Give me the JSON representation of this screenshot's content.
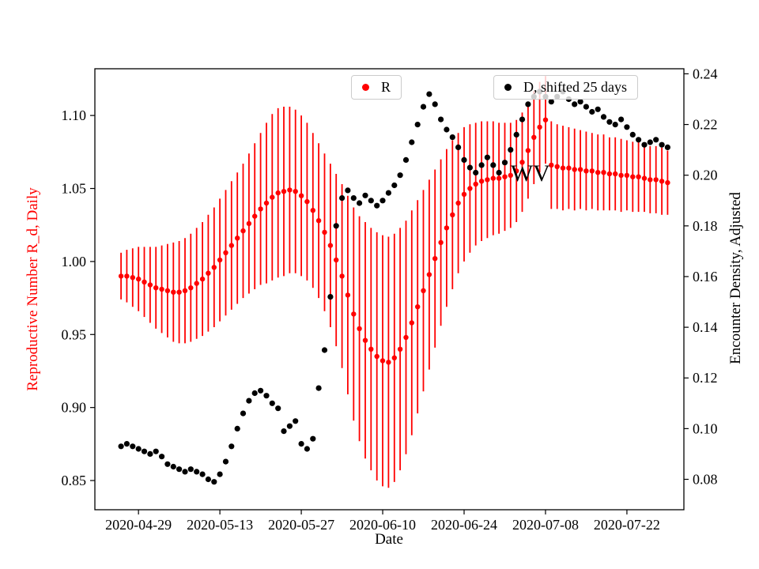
{
  "figure": {
    "background": "#ffffff"
  },
  "chart_data": {
    "type": "scatter",
    "title": "",
    "xlabel": "Date",
    "ylabel_left": "Reproductive Number R_d, Daily",
    "ylabel_right": "Encounter Density, Adjusted",
    "grid": false,
    "x_start_date": "2020-04-26",
    "x_tick_labels": [
      "2020-04-29",
      "2020-05-13",
      "2020-05-27",
      "2020-06-10",
      "2020-06-24",
      "2020-07-08",
      "2020-07-22"
    ],
    "x_tick_days": [
      3,
      17,
      31,
      45,
      59,
      73,
      87
    ],
    "xlim_days": [
      -4.5,
      96.8
    ],
    "left_axis": {
      "tick_labels": [
        "0.85",
        "0.90",
        "0.95",
        "1.00",
        "1.05",
        "1.10"
      ],
      "lim": [
        0.83,
        1.132
      ],
      "color": "#ff0000"
    },
    "right_axis": {
      "tick_labels": [
        "0.08",
        "0.10",
        "0.12",
        "0.14",
        "0.16",
        "0.18",
        "0.20",
        "0.22",
        "0.24"
      ],
      "lim": [
        0.068,
        0.242
      ],
      "color": "#000000"
    },
    "annotation": {
      "text": "WV",
      "date": "2020-07-02",
      "value": 1.052,
      "axis": "left"
    },
    "legends": [
      {
        "label": "R",
        "color": "#ff0000",
        "position": "upper center"
      },
      {
        "label": "D, shifted 25 days",
        "color": "#000000",
        "position": "upper right"
      }
    ],
    "series": [
      {
        "name": "R",
        "axis": "left",
        "color": "#ff0000",
        "marker": "circle",
        "values": [
          0.99,
          0.99,
          0.989,
          0.988,
          0.986,
          0.984,
          0.982,
          0.981,
          0.98,
          0.979,
          0.979,
          0.98,
          0.982,
          0.985,
          0.988,
          0.992,
          0.996,
          1.001,
          1.006,
          1.011,
          1.016,
          1.021,
          1.026,
          1.031,
          1.036,
          1.04,
          1.044,
          1.047,
          1.048,
          1.049,
          1.048,
          1.045,
          1.041,
          1.035,
          1.028,
          1.02,
          1.011,
          1.001,
          0.99,
          0.977,
          0.964,
          0.954,
          0.946,
          0.94,
          0.935,
          0.932,
          0.931,
          0.934,
          0.94,
          0.948,
          0.958,
          0.969,
          0.98,
          0.991,
          1.002,
          1.013,
          1.023,
          1.032,
          1.04,
          1.046,
          1.05,
          1.053,
          1.055,
          1.056,
          1.057,
          1.057,
          1.058,
          1.059,
          1.062,
          1.068,
          1.076,
          1.085,
          1.092,
          1.097,
          1.066,
          1.065,
          1.064,
          1.064,
          1.063,
          1.063,
          1.062,
          1.062,
          1.061,
          1.061,
          1.06,
          1.06,
          1.059,
          1.059,
          1.058,
          1.058,
          1.057,
          1.056,
          1.056,
          1.055,
          1.054
        ],
        "errors": [
          0.016,
          0.018,
          0.02,
          0.022,
          0.024,
          0.026,
          0.028,
          0.03,
          0.032,
          0.034,
          0.035,
          0.036,
          0.037,
          0.038,
          0.039,
          0.04,
          0.041,
          0.042,
          0.043,
          0.044,
          0.045,
          0.046,
          0.048,
          0.05,
          0.052,
          0.055,
          0.057,
          0.058,
          0.058,
          0.057,
          0.056,
          0.055,
          0.054,
          0.053,
          0.053,
          0.054,
          0.056,
          0.059,
          0.063,
          0.068,
          0.073,
          0.077,
          0.081,
          0.083,
          0.085,
          0.086,
          0.086,
          0.085,
          0.083,
          0.08,
          0.077,
          0.073,
          0.069,
          0.065,
          0.061,
          0.057,
          0.054,
          0.051,
          0.048,
          0.046,
          0.044,
          0.042,
          0.041,
          0.04,
          0.039,
          0.038,
          0.037,
          0.036,
          0.035,
          0.034,
          0.033,
          0.032,
          0.031,
          0.03,
          0.03,
          0.029,
          0.029,
          0.028,
          0.028,
          0.027,
          0.027,
          0.026,
          0.026,
          0.026,
          0.025,
          0.025,
          0.025,
          0.024,
          0.024,
          0.024,
          0.023,
          0.023,
          0.023,
          0.023,
          0.022
        ]
      },
      {
        "name": "D, shifted 25 days",
        "axis": "right",
        "color": "#000000",
        "marker": "circle",
        "values": [
          0.093,
          0.094,
          0.093,
          0.092,
          0.091,
          0.09,
          0.091,
          0.089,
          0.086,
          0.085,
          0.084,
          0.083,
          0.084,
          0.083,
          0.082,
          0.08,
          0.079,
          0.082,
          0.087,
          0.093,
          0.1,
          0.106,
          0.111,
          0.114,
          0.115,
          0.113,
          0.11,
          0.108,
          0.099,
          0.101,
          0.103,
          0.094,
          0.092,
          0.096,
          0.116,
          0.131,
          0.152,
          0.18,
          0.191,
          0.194,
          0.191,
          0.189,
          0.192,
          0.19,
          0.188,
          0.19,
          0.193,
          0.196,
          0.2,
          0.206,
          0.213,
          0.22,
          0.227,
          0.232,
          0.228,
          0.222,
          0.218,
          0.215,
          0.211,
          0.206,
          0.203,
          0.201,
          0.204,
          0.207,
          0.204,
          0.201,
          0.205,
          0.21,
          0.216,
          0.222,
          0.228,
          0.231,
          0.233,
          0.231,
          0.229,
          0.231,
          0.233,
          0.23,
          0.228,
          0.229,
          0.227,
          0.225,
          0.226,
          0.223,
          0.221,
          0.22,
          0.222,
          0.219,
          0.216,
          0.214,
          0.212,
          0.213,
          0.214,
          0.212,
          0.211
        ]
      }
    ]
  }
}
